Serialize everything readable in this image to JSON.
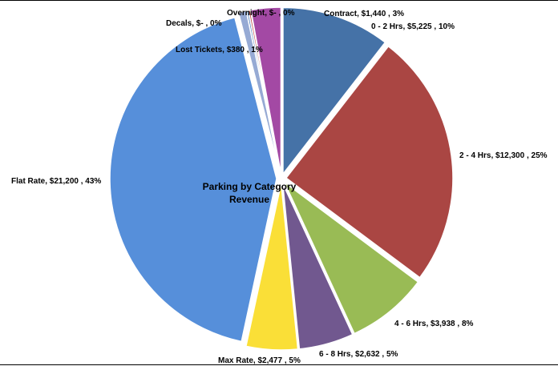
{
  "chart_data": {
    "type": "pie",
    "title_lines": [
      "Parking by Category",
      "Revenue"
    ],
    "slices": [
      {
        "category": "0 - 2 Hrs",
        "value": 5225,
        "value_label": "$5,225",
        "percent": "10%",
        "color": "#4572A7"
      },
      {
        "category": "2 - 4 Hrs",
        "value": 12300,
        "value_label": "$12,300",
        "percent": "25%",
        "color": "#AA4643"
      },
      {
        "category": "4 - 6 Hrs",
        "value": 3938,
        "value_label": "$3,938",
        "percent": "8%",
        "color": "#99BB55"
      },
      {
        "category": "6 - 8 Hrs",
        "value": 2632,
        "value_label": "$2,632",
        "percent": "5%",
        "color": "#71588F"
      },
      {
        "category": "Max Rate",
        "value": 2477,
        "value_label": "$2,477",
        "percent": "5%",
        "color": "#FADF37"
      },
      {
        "category": "Flat Rate",
        "value": 21200,
        "value_label": "$21,200",
        "percent": "43%",
        "color": "#568FDA"
      },
      {
        "category": "Lost Tickets",
        "value": 380,
        "value_label": "$380",
        "percent": "1%",
        "color": "#96AAD4"
      },
      {
        "category": "Decals",
        "value": 0,
        "value_label": "$-",
        "percent": "0%",
        "color": "#4F81BD"
      },
      {
        "category": "Overnight",
        "value": 0,
        "value_label": "$-",
        "percent": "0%",
        "color": "#C0504D"
      },
      {
        "category": "Contract",
        "value": 1440,
        "value_label": "$1,440",
        "percent": "3%",
        "color": "#A349A4"
      }
    ]
  }
}
